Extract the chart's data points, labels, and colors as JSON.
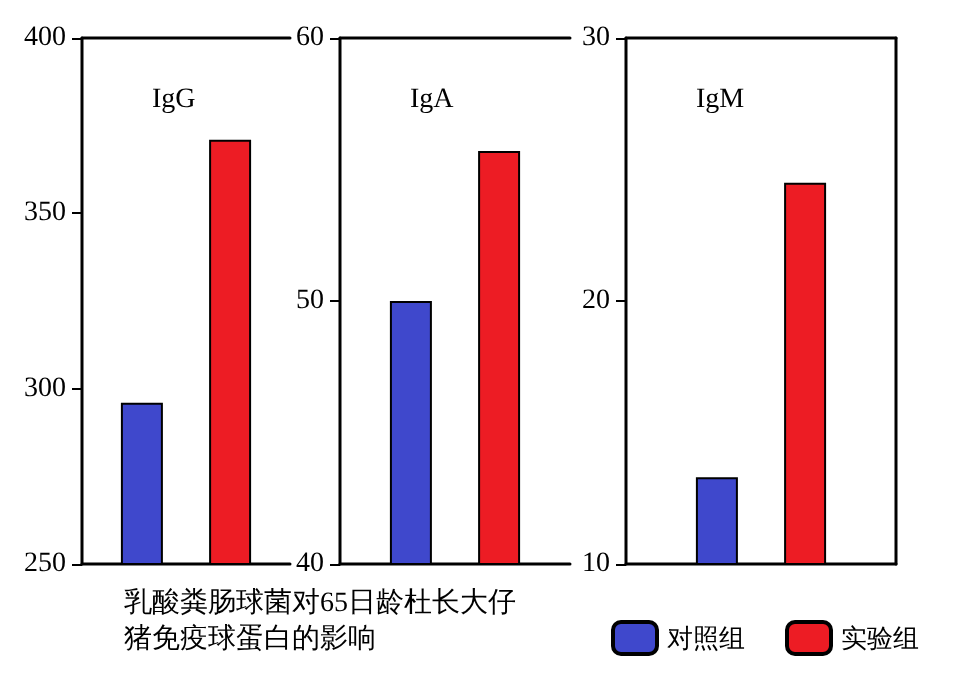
{
  "chart_data": [
    {
      "type": "bar",
      "title": "IgG",
      "categories": [
        null
      ],
      "series": [
        {
          "color": "#3f48cc",
          "values": [
            296
          ]
        },
        {
          "color": "#ed1c24",
          "values": [
            371
          ]
        }
      ],
      "ylim": [
        250,
        400
      ],
      "yticks": [
        250,
        300,
        350,
        400
      ],
      "grid": false,
      "annotations": [
        "乳酸粪肠球菌对65日龄杜长大仔猪免疫球蛋白的影响"
      ]
    },
    {
      "type": "bar",
      "title": "IgA",
      "categories": [
        null
      ],
      "series": [
        {
          "color": "#3f48cc",
          "values": [
            50
          ]
        },
        {
          "color": "#ed1c24",
          "values": [
            55.7
          ]
        }
      ],
      "ylim": [
        40,
        60
      ],
      "yticks": [
        40,
        50,
        60
      ],
      "grid": false
    },
    {
      "type": "bar",
      "title": "IgM",
      "categories": [
        null
      ],
      "series": [
        {
          "name": "对照组",
          "color": "#3f48cc",
          "values": [
            13.3
          ]
        },
        {
          "name": "实验组",
          "color": "#ed1c24",
          "values": [
            24.5
          ]
        }
      ],
      "ylim": [
        10,
        30
      ],
      "yticks": [
        10,
        20,
        30
      ],
      "grid": false,
      "legend": "bottom"
    }
  ]
}
